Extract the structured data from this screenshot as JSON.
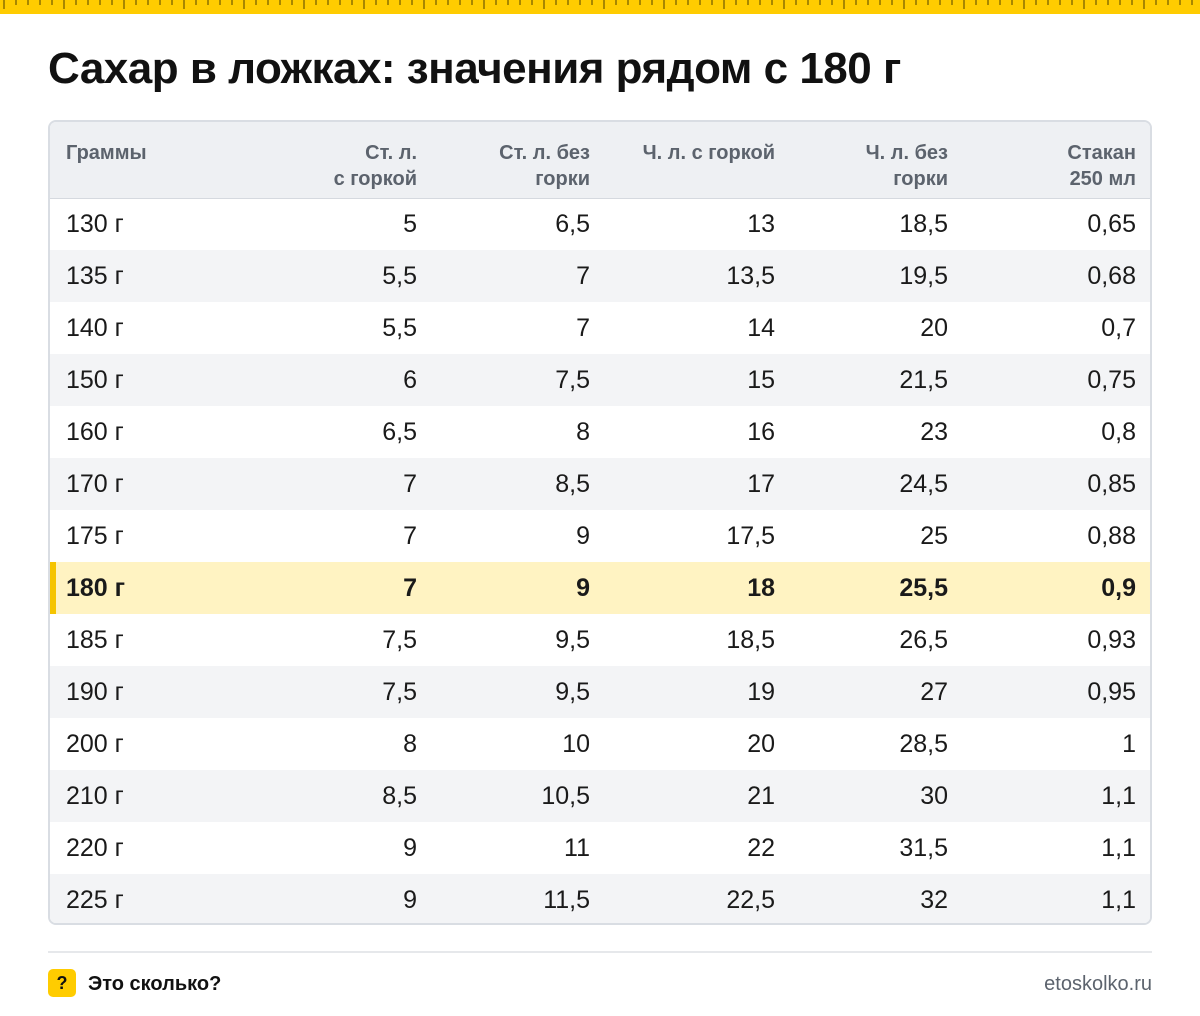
{
  "title": "Сахар в ложках: значения рядом с 180 г",
  "table": {
    "headers": [
      [
        "Граммы",
        ""
      ],
      [
        "Ст. л.",
        "с горкой"
      ],
      [
        "Ст. л. без",
        "горки"
      ],
      [
        "Ч. л. с горкой",
        ""
      ],
      [
        "Ч. л. без",
        "горки"
      ],
      [
        "Стакан",
        "250 мл"
      ]
    ],
    "rows": [
      [
        "130 г",
        "5",
        "6,5",
        "13",
        "18,5",
        "0,65"
      ],
      [
        "135 г",
        "5,5",
        "7",
        "13,5",
        "19,5",
        "0,68"
      ],
      [
        "140 г",
        "5,5",
        "7",
        "14",
        "20",
        "0,7"
      ],
      [
        "150 г",
        "6",
        "7,5",
        "15",
        "21,5",
        "0,75"
      ],
      [
        "160 г",
        "6,5",
        "8",
        "16",
        "23",
        "0,8"
      ],
      [
        "170 г",
        "7",
        "8,5",
        "17",
        "24,5",
        "0,85"
      ],
      [
        "175 г",
        "7",
        "9",
        "17,5",
        "25",
        "0,88"
      ],
      [
        "180 г",
        "7",
        "9",
        "18",
        "25,5",
        "0,9"
      ],
      [
        "185 г",
        "7,5",
        "9,5",
        "18,5",
        "26,5",
        "0,93"
      ],
      [
        "190 г",
        "7,5",
        "9,5",
        "19",
        "27",
        "0,95"
      ],
      [
        "200 г",
        "8",
        "10",
        "20",
        "28,5",
        "1"
      ],
      [
        "210 г",
        "8,5",
        "10,5",
        "21",
        "30",
        "1,1"
      ],
      [
        "220 г",
        "9",
        "11",
        "22",
        "31,5",
        "1,1"
      ],
      [
        "225 г",
        "9",
        "11,5",
        "22,5",
        "32",
        "1,1"
      ]
    ],
    "highlight_row_label": "180 г"
  },
  "footer": {
    "badge": "?",
    "brand": "Это сколько?",
    "site": "etoskolko.ru"
  },
  "colors": {
    "accent": "#ffcc00",
    "highlight_row": "#fff3c2",
    "header_bg": "#eef0f3",
    "stripe_bg": "#f3f4f6"
  }
}
